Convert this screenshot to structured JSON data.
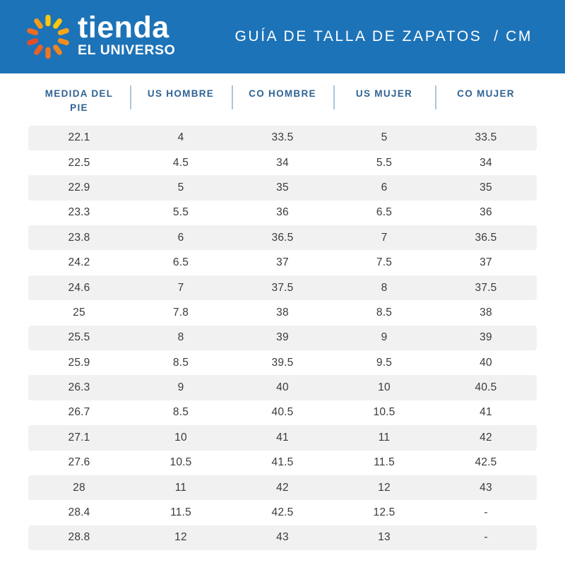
{
  "brand": {
    "line1": "tienda",
    "line2": "EL UNIVERSO",
    "logo_ray_colors": [
      "#fdc70c",
      "#fdc70c",
      "#f9a61a",
      "#f28c1e",
      "#f08621",
      "#ee7623",
      "#e95f28",
      "#e14e2b",
      "#ea6c26",
      "#f49b1c"
    ]
  },
  "header": {
    "title": "GUÍA DE TALLA DE ZAPATOS  / CM"
  },
  "chart_data": {
    "type": "table",
    "title": "GUÍA DE TALLA DE ZAPATOS / CM",
    "columns": [
      "MEDIDA DEL PIE",
      "US HOMBRE",
      "CO HOMBRE",
      "US MUJER",
      "CO MUJER"
    ],
    "rows": [
      [
        "22.1",
        "4",
        "33.5",
        "5",
        "33.5"
      ],
      [
        "22.5",
        "4.5",
        "34",
        "5.5",
        "34"
      ],
      [
        "22.9",
        "5",
        "35",
        "6",
        "35"
      ],
      [
        "23.3",
        "5.5",
        "36",
        "6.5",
        "36"
      ],
      [
        "23.8",
        "6",
        "36.5",
        "7",
        "36.5"
      ],
      [
        "24.2",
        "6.5",
        "37",
        "7.5",
        "37"
      ],
      [
        "24.6",
        "7",
        "37.5",
        "8",
        "37.5"
      ],
      [
        "25",
        "7.8",
        "38",
        "8.5",
        "38"
      ],
      [
        "25.5",
        "8",
        "39",
        "9",
        "39"
      ],
      [
        "25.9",
        "8.5",
        "39.5",
        "9.5",
        "40"
      ],
      [
        "26.3",
        "9",
        "40",
        "10",
        "40.5"
      ],
      [
        "26.7",
        "8.5",
        "40.5",
        "10.5",
        "41"
      ],
      [
        "27.1",
        "10",
        "41",
        "11",
        "42"
      ],
      [
        "27.6",
        "10.5",
        "41.5",
        "11.5",
        "42.5"
      ],
      [
        "28",
        "11",
        "42",
        "12",
        "43"
      ],
      [
        "28.4",
        "11.5",
        "42.5",
        "12.5",
        "-"
      ],
      [
        "28.8",
        "12",
        "43",
        "13",
        "-"
      ]
    ],
    "layout": {
      "alternating_row_shading": true,
      "first_row_shaded": true
    }
  },
  "colors": {
    "header_bg": "#1d73b8",
    "header_text": "#ffffff",
    "column_header_text": "#2f6394",
    "column_divider": "#a9c6de",
    "row_alt_bg": "#f1f1f1",
    "cell_text": "#3a3a3a"
  }
}
